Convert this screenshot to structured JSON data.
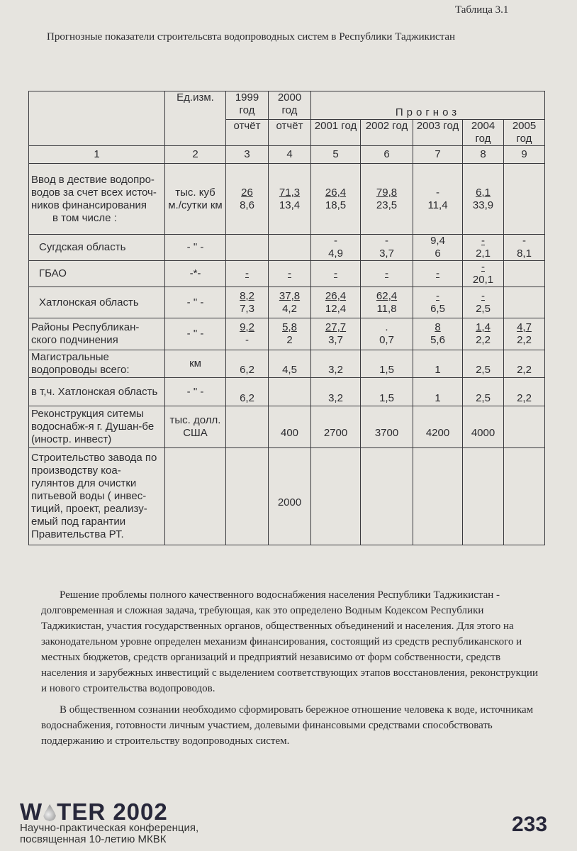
{
  "table_label": "Таблица 3.1",
  "table_title": "Прогнозные показатели строительсвта водопроводных систем в Республики Таджикистан",
  "table": {
    "header": {
      "unit": "Ед.изм.",
      "y1999": "1999 год",
      "y2000": "2000 год",
      "report": "отчёт",
      "forecast": "Прогноз",
      "years": [
        "2001 год",
        "2002 год",
        "2003 год",
        "2004 год",
        "2005 год"
      ]
    },
    "col_numbers": [
      "1",
      "2",
      "3",
      "4",
      "5",
      "6",
      "7",
      "8",
      "9"
    ],
    "rows": [
      {
        "label": "Ввод в дествие водопро-водов за счет всех источ-ников финансирования",
        "sublabel": "в том числе :",
        "unit": "тыс. куб м./сутки км",
        "values": [
          [
            "26",
            "8,6",
            true
          ],
          [
            "71,3",
            "13,4",
            true
          ],
          [
            "26,4",
            "18,5",
            true
          ],
          [
            "79,8",
            "23,5",
            true
          ],
          [
            "-",
            "11,4",
            false
          ],
          [
            "6,1",
            "33,9",
            true
          ],
          [
            "",
            ""
          ]
        ]
      },
      {
        "label": "Сугдская область",
        "unit": "- \" -",
        "values": [
          [
            "",
            ""
          ],
          [
            "",
            ""
          ],
          [
            "-",
            "4,9",
            false
          ],
          [
            "-",
            "3,7",
            false
          ],
          [
            "9,4",
            "6",
            false
          ],
          [
            "-",
            "2,1",
            true
          ],
          [
            "-",
            "8,1",
            false
          ]
        ]
      },
      {
        "label": "ГБАО",
        "unit": "-*-",
        "values": [
          [
            "-",
            "",
            true
          ],
          [
            "-",
            "",
            true
          ],
          [
            "-",
            "",
            true
          ],
          [
            "-",
            "",
            true
          ],
          [
            "-",
            "",
            true
          ],
          [
            "-",
            "20,1",
            true
          ],
          [
            "",
            ""
          ]
        ]
      },
      {
        "label": "Хатлонская область",
        "unit": "- \" -",
        "values": [
          [
            "8,2",
            "7,3",
            true
          ],
          [
            "37,8",
            "4,2",
            true
          ],
          [
            "26,4",
            "12,4",
            true
          ],
          [
            "62,4",
            "11,8",
            true
          ],
          [
            "-",
            "6,5",
            true
          ],
          [
            "-",
            "2,5",
            true
          ],
          [
            "",
            ""
          ]
        ]
      },
      {
        "label": "Районы Республикан-ского подчинения",
        "unit": "- \" -",
        "values": [
          [
            "9,2",
            "-",
            true
          ],
          [
            "5,8",
            "2",
            true
          ],
          [
            "27,7",
            "3,7",
            true
          ],
          [
            ".",
            "0,7",
            false
          ],
          [
            "8",
            "5,6",
            true
          ],
          [
            "1,4",
            "2,2",
            true
          ],
          [
            "4,7",
            "2,2",
            true
          ]
        ]
      },
      {
        "label": "Магистральные водопроводы всего:",
        "unit": "км",
        "values": [
          [
            "",
            "6,2"
          ],
          [
            "",
            "4,5"
          ],
          [
            "",
            "3,2"
          ],
          [
            "",
            "1,5"
          ],
          [
            "",
            "1"
          ],
          [
            "",
            "2,5"
          ],
          [
            "",
            "2,2"
          ]
        ]
      },
      {
        "label": "в т,ч. Хатлонская область",
        "unit": "- \" -",
        "values": [
          [
            "",
            "6,2"
          ],
          [
            "",
            ""
          ],
          [
            "",
            "3,2"
          ],
          [
            "",
            "1,5"
          ],
          [
            "",
            "1"
          ],
          [
            "",
            "2,5"
          ],
          [
            "",
            "2,2"
          ]
        ]
      },
      {
        "label": "Реконструкция ситемы водоснабж-я г. Душан-бе (иностр. инвест)",
        "unit": "тыс. долл. США",
        "values": [
          [
            "",
            ""
          ],
          [
            "",
            "400"
          ],
          [
            "",
            "2700"
          ],
          [
            "",
            "3700"
          ],
          [
            "",
            "4200"
          ],
          [
            "",
            "4000"
          ],
          [
            "",
            ""
          ]
        ]
      },
      {
        "label": "Строительство завода по производству коа-гулянтов для очистки питьевой воды ( инвес-тиций, проект, реализу-емый под гарантии Правительства РТ.",
        "unit": "",
        "values": [
          [
            "",
            ""
          ],
          [
            "",
            "2000"
          ],
          [
            "",
            ""
          ],
          [
            "",
            ""
          ],
          [
            "",
            ""
          ],
          [
            "",
            ""
          ],
          [
            "",
            ""
          ]
        ]
      }
    ]
  },
  "paragraphs": [
    "Решение проблемы полного качественного водоснабжения населения Республики Таджикистан - долговременная и сложная задача, требующая, как это определено Водным Кодексом Республики Таджикистан, участия государственных органов, общественных объединений и населения. Для этого на законодательном уровне определен механизм финансирования, состоящий из средств республиканского и местных бюджетов, средств организаций и предприятий независимо от форм собственности, средств населения и зарубежных инвестиций с выделением соответствующих этапов восстановления, реконструкции и нового строительства водопроводов.",
    "В общественном сознании необходимо сформировать бережное отношение человека к воде, источникам водоснабжения, готовности личным участием, долевыми финансовыми средствами способствовать поддержанию и строительству водопроводных систем."
  ],
  "footer": {
    "logo": "WATER 2002",
    "logo_w": "W",
    "logo_rest": "TER 2002",
    "conference_line1": "Научно-практическая конференция,",
    "conference_line2": "посвященная 10-летию МКВК",
    "page_number": "233"
  }
}
